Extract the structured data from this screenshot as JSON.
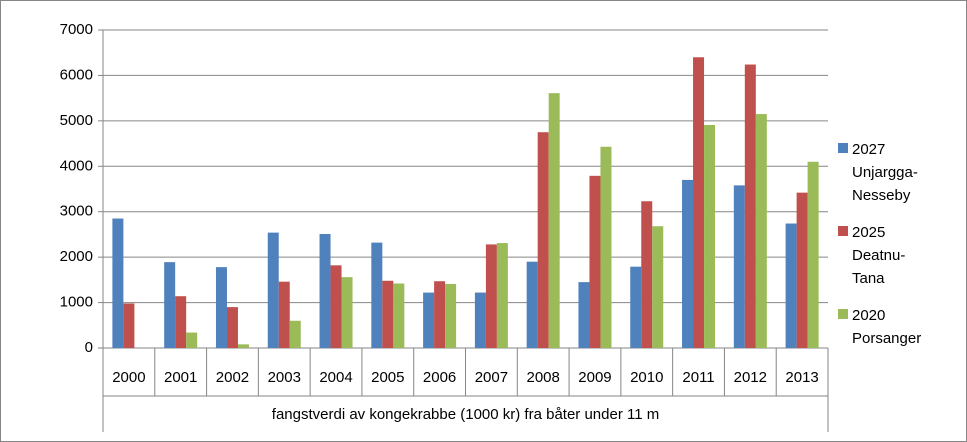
{
  "chart_data": {
    "type": "bar",
    "x_label": "fangstverdi av kongekrabbe (1000 kr) fra båter under 11 m",
    "categories": [
      "2000",
      "2001",
      "2002",
      "2003",
      "2004",
      "2005",
      "2006",
      "2007",
      "2008",
      "2009",
      "2010",
      "2011",
      "2012",
      "2013"
    ],
    "series": [
      {
        "name": "2027 Unjargga-Nesseby",
        "color": "#4f81bd",
        "values": [
          2850,
          1890,
          1780,
          2540,
          2510,
          2320,
          1220,
          1220,
          1900,
          1450,
          1790,
          3700,
          3580,
          2740
        ]
      },
      {
        "name": "2025 Deatnu-Tana",
        "color": "#c0504d",
        "values": [
          980,
          1140,
          900,
          1460,
          1820,
          1480,
          1470,
          2280,
          4750,
          3790,
          3230,
          6400,
          6240,
          3420
        ]
      },
      {
        "name": "2020 Porsanger",
        "color": "#9bbb59",
        "values": [
          null,
          340,
          80,
          600,
          1560,
          1420,
          1410,
          2310,
          5610,
          4430,
          2680,
          4910,
          5150,
          4100
        ]
      }
    ],
    "ylim": [
      0,
      7000
    ],
    "yticks": [
      0,
      1000,
      2000,
      3000,
      4000,
      5000,
      6000,
      7000
    ],
    "grid": true,
    "legend": "right"
  }
}
